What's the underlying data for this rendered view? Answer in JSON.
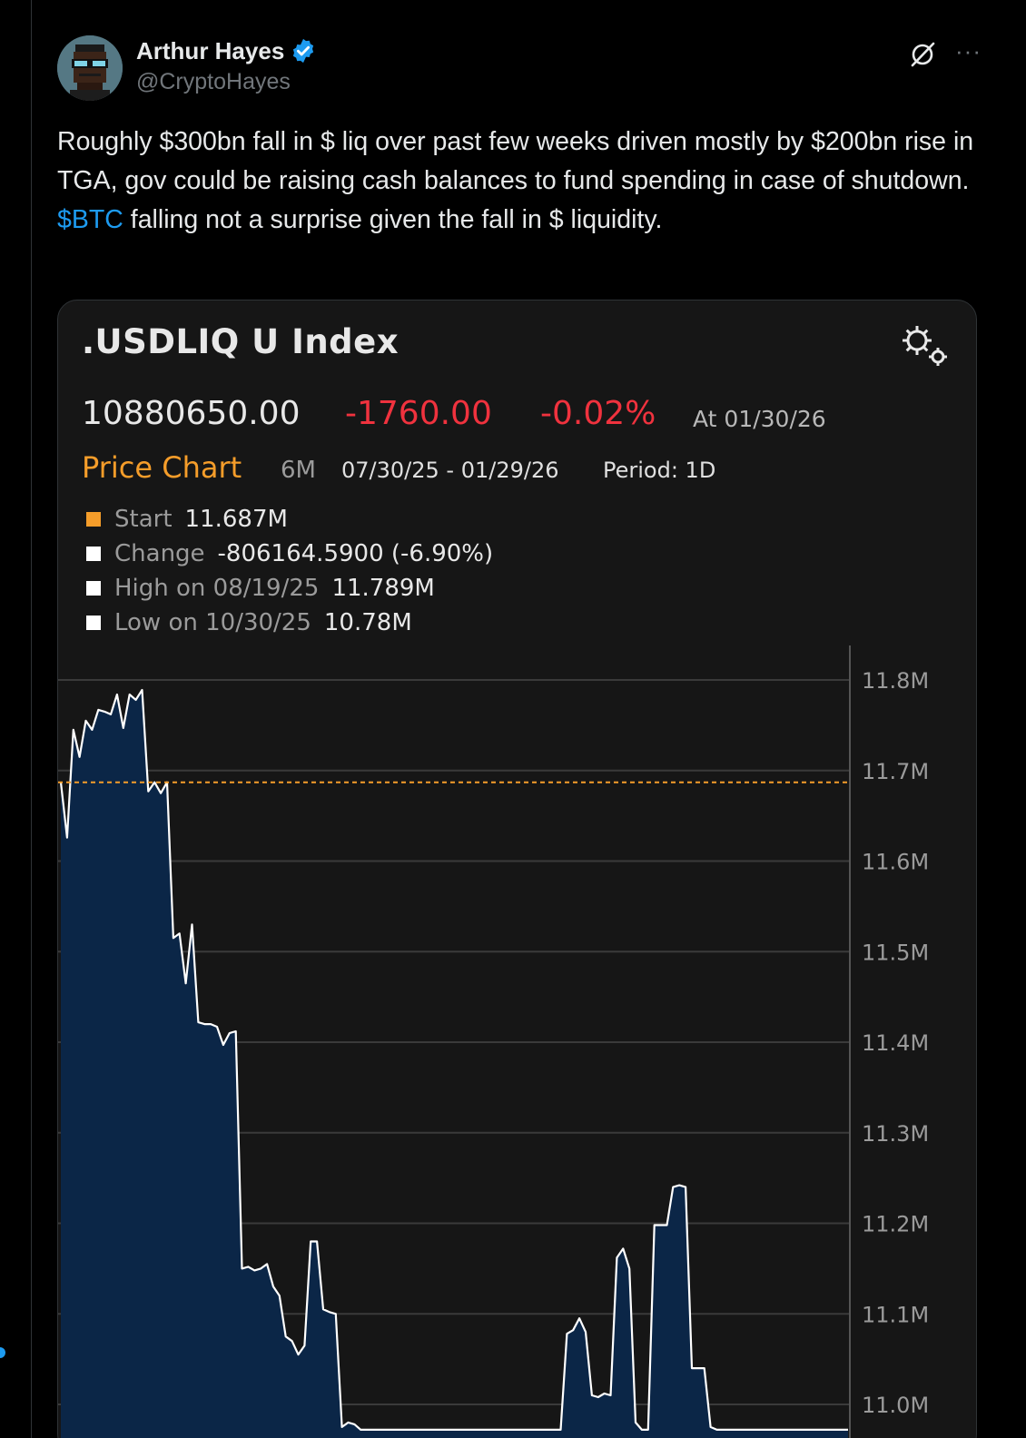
{
  "tweet": {
    "author_name": "Arthur Hayes",
    "author_handle": "@CryptoHayes",
    "text_parts": [
      "Roughly $300bn fall in $ liq over past few weeks driven mostly by $200bn rise in TGA, gov could be raising cash balances to fund spending in case of shutdown. ",
      "$BTC",
      " falling not a surprise given the fall in $ liquidity."
    ],
    "more_label": "···"
  },
  "colors": {
    "background": "#000000",
    "cashtag": "#1d9bf0",
    "verified": "#1d9bf0",
    "negative": "#f0323e",
    "price_chart_orange": "#f59d2a",
    "chart_line": "#ffffff",
    "chart_fill": "#0b2647"
  },
  "card": {
    "index_title": ".USDLIQ U Index",
    "last_price": "10880650.00",
    "net_change": "-1760.00",
    "pct_change": "-0.02%",
    "as_of": "At 01/30/26",
    "price_chart_label": "Price Chart",
    "range": "6M",
    "date_range": "07/30/25 - 01/29/26",
    "period": "Period: 1D",
    "legend": [
      {
        "label": "Start",
        "value": "11.687M",
        "swatch": "#f59d2a"
      },
      {
        "label": "Change",
        "value": "-806164.5900 (-6.90%)",
        "swatch": "#ffffff"
      },
      {
        "label": "High on 08/19/25",
        "value": "11.789M",
        "swatch": "#ffffff"
      },
      {
        "label": "Low on 10/30/25",
        "value": "10.78M",
        "swatch": "#ffffff"
      }
    ]
  },
  "chart_data": {
    "type": "area",
    "y_tick_labels": [
      "11.8M",
      "11.7M",
      "11.6M",
      "11.5M",
      "11.4M",
      "11.3M",
      "11.2M",
      "11.1M",
      "11.0M"
    ],
    "y_ticks": [
      11.8,
      11.7,
      11.6,
      11.5,
      11.4,
      11.3,
      11.2,
      11.1,
      11.0
    ],
    "ylim": [
      10.97,
      11.84
    ],
    "reference_line": 11.687,
    "x_index": [
      0,
      1,
      2,
      3,
      4,
      5,
      6,
      7,
      8,
      9,
      10,
      11,
      12,
      13,
      14,
      15,
      16,
      17,
      18,
      19,
      20,
      21,
      22,
      23,
      24,
      25,
      26,
      27,
      28,
      29,
      30,
      31,
      32,
      33,
      34,
      35,
      36,
      37,
      38,
      39,
      40,
      41,
      42,
      43,
      44,
      45,
      46,
      47,
      48,
      49,
      50,
      51,
      52,
      53,
      54,
      55,
      56,
      57,
      58,
      59,
      60,
      61,
      62,
      63,
      64,
      65,
      66,
      67,
      68,
      69,
      70,
      71,
      72,
      73,
      74,
      75,
      76,
      77,
      78,
      79,
      80,
      81,
      82,
      83,
      84,
      85,
      86,
      87,
      88,
      89,
      90,
      91,
      92,
      93,
      94,
      95,
      96,
      97,
      98,
      99,
      100,
      101,
      102,
      103,
      104,
      105,
      106,
      107,
      108,
      109,
      110,
      111,
      112,
      113,
      114,
      115,
      116,
      117,
      118,
      119,
      120,
      121,
      122,
      123,
      124,
      125,
      126
    ],
    "values": [
      11.687,
      11.626,
      11.745,
      11.715,
      11.755,
      11.745,
      11.767,
      11.765,
      11.762,
      11.784,
      11.747,
      11.784,
      11.778,
      11.789,
      11.677,
      11.687,
      11.675,
      11.687,
      11.515,
      11.52,
      11.465,
      11.53,
      11.422,
      11.42,
      11.42,
      11.417,
      11.397,
      11.41,
      11.412,
      11.15,
      11.152,
      11.148,
      11.15,
      11.155,
      11.13,
      11.12,
      11.075,
      11.07,
      11.055,
      11.065,
      11.18,
      11.18,
      11.105,
      11.102,
      11.1,
      10.975,
      10.98,
      10.978,
      10.972,
      10.972,
      10.972,
      10.972,
      10.972,
      10.972,
      10.972,
      10.972,
      10.972,
      10.972,
      10.972,
      10.972,
      10.972,
      10.972,
      10.972,
      10.972,
      10.972,
      10.972,
      10.972,
      10.972,
      10.972,
      10.972,
      10.972,
      10.972,
      10.972,
      10.972,
      10.972,
      10.972,
      10.972,
      10.972,
      10.972,
      10.972,
      10.972,
      11.078,
      11.082,
      11.095,
      11.08,
      11.01,
      11.008,
      11.012,
      11.01,
      11.162,
      11.172,
      11.15,
      10.98,
      10.972,
      10.972,
      11.198,
      11.198,
      11.198,
      11.24,
      11.242,
      11.24,
      11.04,
      11.04,
      11.04,
      10.975,
      10.972,
      10.972,
      10.972,
      10.972,
      10.972,
      10.972,
      10.972,
      10.972,
      10.972,
      10.972,
      10.972,
      10.972,
      10.972,
      10.972,
      10.972,
      10.972,
      10.972,
      10.972,
      10.972,
      10.972,
      10.972,
      10.972
    ]
  }
}
